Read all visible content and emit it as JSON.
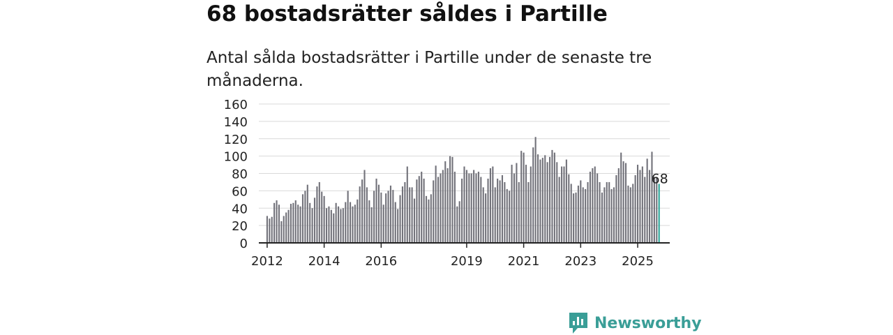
{
  "header": {
    "title": "68 bostadsrätter såldes i Partille",
    "subtitle": "Antal sålda bostadsrätter i Partille under de senaste tre månaderna."
  },
  "brand": {
    "name": "Newsworthy",
    "icon": "newsworthy-logo-icon",
    "color": "#3a9e97"
  },
  "colors": {
    "bar": "#72727a",
    "highlight": "#2aa397",
    "grid": "#d9d9d9",
    "axis": "#222222"
  },
  "chart_data": {
    "type": "bar",
    "title": "68 bostadsrätter såldes i Partille",
    "subtitle": "Antal sålda bostadsrätter i Partille under de senaste tre månaderna.",
    "xlabel": "",
    "ylabel": "",
    "ylim": [
      0,
      160
    ],
    "yticks": [
      0,
      20,
      40,
      60,
      80,
      100,
      120,
      140,
      160
    ],
    "xlim": [
      "2011-10",
      "2026-03"
    ],
    "xticks": [
      {
        "label": "2012",
        "at": "2012-01"
      },
      {
        "label": "2014",
        "at": "2014-01"
      },
      {
        "label": "2016",
        "at": "2016-01"
      },
      {
        "label": "2019",
        "at": "2019-01"
      },
      {
        "label": "2021",
        "at": "2021-01"
      },
      {
        "label": "2023",
        "at": "2023-01"
      },
      {
        "label": "2025",
        "at": "2025-01"
      }
    ],
    "grid": true,
    "legend": "none",
    "start": "2012-01",
    "values": [
      31,
      28,
      30,
      46,
      49,
      44,
      25,
      31,
      35,
      38,
      45,
      46,
      49,
      44,
      42,
      56,
      60,
      67,
      46,
      40,
      52,
      65,
      70,
      59,
      54,
      40,
      42,
      38,
      34,
      46,
      42,
      39,
      40,
      47,
      60,
      47,
      42,
      44,
      50,
      65,
      73,
      84,
      64,
      49,
      41,
      60,
      74,
      67,
      58,
      44,
      57,
      60,
      66,
      61,
      47,
      39,
      55,
      65,
      70,
      88,
      64,
      64,
      51,
      73,
      77,
      82,
      74,
      54,
      50,
      56,
      72,
      89,
      76,
      80,
      84,
      94,
      86,
      100,
      99,
      82,
      42,
      48,
      74,
      88,
      84,
      80,
      80,
      84,
      80,
      82,
      76,
      64,
      57,
      74,
      86,
      88,
      64,
      74,
      72,
      78,
      70,
      62,
      60,
      90,
      80,
      92,
      70,
      106,
      104,
      90,
      70,
      88,
      110,
      122,
      102,
      96,
      98,
      101,
      93,
      99,
      107,
      104,
      93,
      76,
      88,
      88,
      96,
      79,
      68,
      57,
      58,
      66,
      72,
      64,
      62,
      70,
      82,
      86,
      88,
      80,
      70,
      58,
      64,
      70,
      70,
      62,
      64,
      78,
      86,
      104,
      94,
      92,
      66,
      64,
      68,
      78,
      90,
      84,
      88,
      76,
      97,
      84,
      105,
      76,
      76,
      68
    ],
    "highlight_index": 165,
    "annotations": [
      {
        "text": "68",
        "index": 165
      }
    ]
  }
}
